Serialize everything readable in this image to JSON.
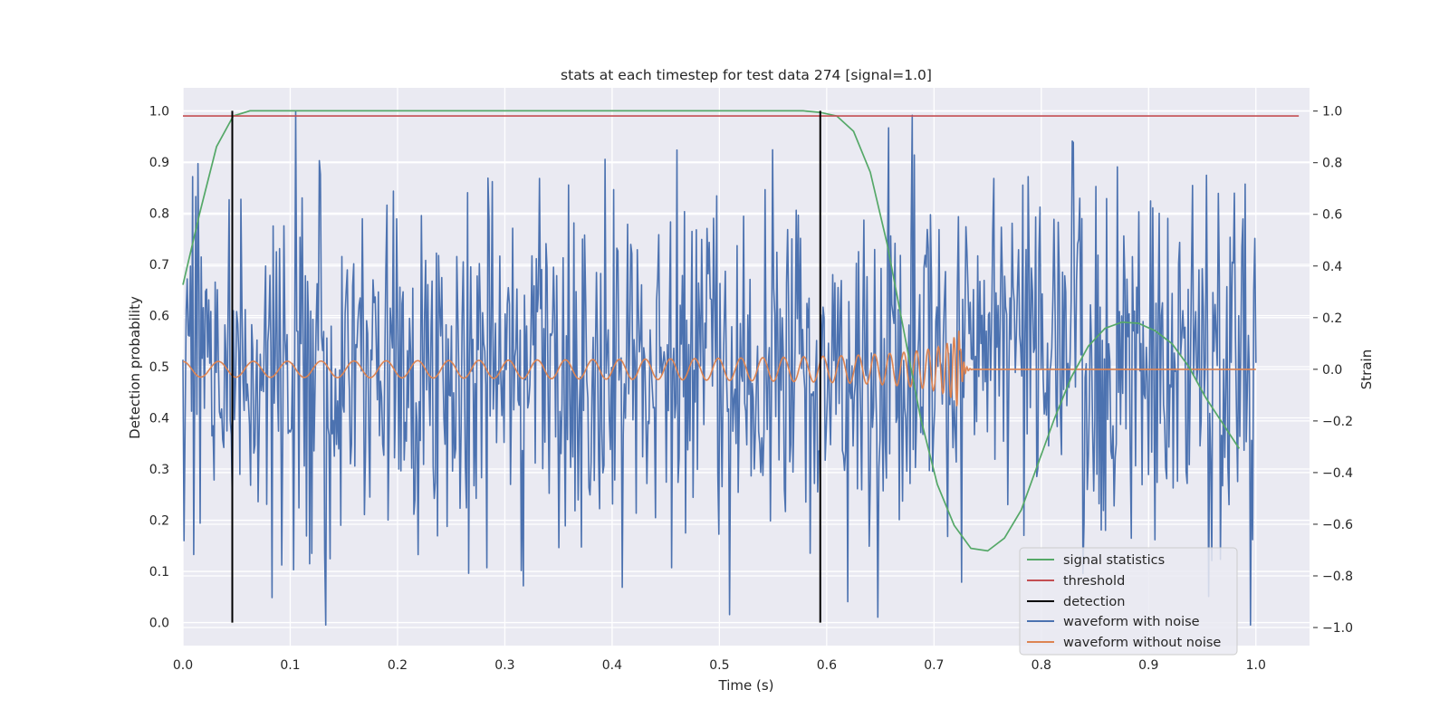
{
  "chart_data": {
    "type": "line",
    "title": "stats at each timestep for test data 274 [signal=1.0]",
    "xlabel": "Time (s)",
    "ylabel": "Detection probability",
    "ylabel_right": "Strain",
    "xlim": [
      0.0,
      1.05
    ],
    "ylim": [
      -0.045,
      1.045
    ],
    "ylim_right": [
      -1.07,
      1.09
    ],
    "xticks": [
      0.0,
      0.1,
      0.2,
      0.3,
      0.4,
      0.5,
      0.6,
      0.7,
      0.8,
      0.9,
      1.0
    ],
    "yticks": [
      0.0,
      0.1,
      0.2,
      0.3,
      0.4,
      0.5,
      0.6,
      0.7,
      0.8,
      0.9,
      1.0
    ],
    "yticks_right": [
      -1.0,
      -0.8,
      -0.6,
      -0.4,
      -0.2,
      0.0,
      0.2,
      0.4,
      0.6,
      0.8,
      1.0
    ],
    "grid": true,
    "legend_position": "lower-right",
    "series": [
      {
        "name": "signal statistics",
        "axis": "left",
        "color": "#55a868",
        "x": [
          0.0,
          0.0156,
          0.0313,
          0.0469,
          0.0625,
          0.0781,
          0.5781,
          0.5938,
          0.6094,
          0.625,
          0.6406,
          0.6563,
          0.6719,
          0.6875,
          0.7031,
          0.7188,
          0.7344,
          0.75,
          0.7656,
          0.7813,
          0.7969,
          0.8125,
          0.8281,
          0.8438,
          0.8594,
          0.875,
          0.8906,
          0.9063,
          0.9219,
          0.9375,
          0.9531,
          0.9688,
          0.9844
        ],
        "y": [
          0.66,
          0.8,
          0.93,
          0.99,
          1.0,
          1.0,
          1.0,
          0.997,
          0.99,
          0.96,
          0.88,
          0.74,
          0.57,
          0.4,
          0.27,
          0.19,
          0.145,
          0.14,
          0.165,
          0.22,
          0.31,
          0.4,
          0.48,
          0.54,
          0.575,
          0.587,
          0.585,
          0.57,
          0.545,
          0.5,
          0.44,
          0.39,
          0.34
        ]
      },
      {
        "name": "threshold",
        "axis": "left",
        "color": "#c44e52",
        "x": [
          0.0,
          1.04
        ],
        "y": [
          0.99,
          0.99
        ]
      },
      {
        "name": "detection",
        "axis": "left",
        "color": "#000000",
        "events_x": [
          0.046,
          0.594
        ],
        "y_range": [
          0.0,
          1.0
        ]
      },
      {
        "name": "waveform with noise",
        "axis": "right",
        "color": "#4c72b0",
        "x_range": [
          0.0,
          1.0
        ],
        "n_points": 1000,
        "approx_amplitude": 0.35,
        "peaks": [
          {
            "x": 0.105,
            "y": 1.0
          },
          {
            "x": 0.51,
            "y": -0.95
          },
          {
            "x": 0.55,
            "y": 0.85
          },
          {
            "x": 0.62,
            "y": -0.9
          },
          {
            "x": 0.648,
            "y": -0.96
          },
          {
            "x": 0.995,
            "y": -0.99
          }
        ]
      },
      {
        "name": "waveform without noise",
        "axis": "right",
        "color": "#dd8452",
        "x_range": [
          0.0,
          1.0
        ],
        "merger_x": 0.725,
        "base_amplitude": 0.03,
        "peak_amplitude": 0.15
      }
    ]
  }
}
